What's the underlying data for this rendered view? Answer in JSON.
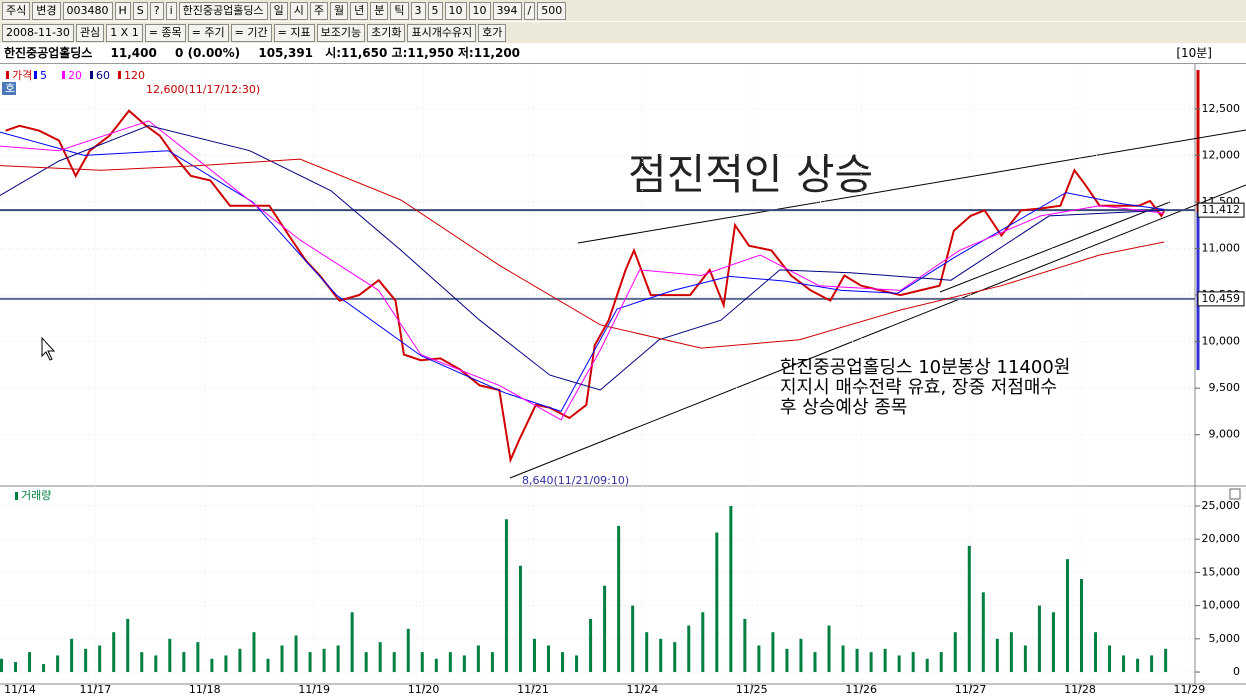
{
  "toolbar": {
    "row1": [
      "주식",
      "변경",
      "003480",
      "H",
      "S",
      "?",
      "i",
      "한진중공업홀딩스",
      "일",
      "시",
      "주",
      "월",
      "년",
      "분",
      "틱",
      "3",
      "5",
      "10",
      "10",
      "394",
      "/",
      "500"
    ],
    "row2": [
      "2008-11-30",
      "관심",
      "1 X 1",
      "= 종목",
      "= 주기",
      "= 기간",
      "= 지표",
      "보조기능",
      "초기화",
      "표시개수유지",
      "호가"
    ]
  },
  "info_bar": {
    "name": "한진중공업홀딩스",
    "price": "11,400",
    "change": "0",
    "change_pct": "(0.00%)",
    "volume": "105,391",
    "open": "시:11,650",
    "high": "고:11,950",
    "low": "저:11,200",
    "period": "[10분]"
  },
  "annotations": {
    "high": "12,600(11/17/12:30)",
    "low": "8,640(11/21/09:10)",
    "handwriting": "점진적인 상승",
    "comment": [
      "한진중공업홀딩스 10분봉상 11400원",
      "지지시 매수전략 유효, 장중 저점매수",
      "후 상승예상 종목"
    ],
    "badge": "호"
  },
  "chart_data": [
    {
      "type": "line",
      "xlim": [
        0,
        426
      ],
      "ylim": [
        8460,
        12960
      ],
      "xticks": [
        {
          "value": -5,
          "label": "11/14"
        },
        {
          "value": 34,
          "label": "11/17"
        },
        {
          "value": 73,
          "label": "11/18"
        },
        {
          "value": 112,
          "label": "11/19"
        },
        {
          "value": 151,
          "label": "11/20"
        },
        {
          "value": 190,
          "label": "11/21"
        },
        {
          "value": 229,
          "label": "11/24"
        },
        {
          "value": 268,
          "label": "11/25"
        },
        {
          "value": 307,
          "label": "11/26"
        },
        {
          "value": 346,
          "label": "11/27"
        },
        {
          "value": 385,
          "label": "11/28"
        },
        {
          "value": 424,
          "label": "11/29"
        }
      ],
      "yticks": [
        {
          "value": 9000,
          "label": "9,000"
        },
        {
          "value": 9500,
          "label": "9,500"
        },
        {
          "value": 10000,
          "label": "10,000"
        },
        {
          "value": 10500,
          "label": "10,500"
        },
        {
          "value": 11000,
          "label": "11,000"
        },
        {
          "value": 11500,
          "label": "11,500"
        },
        {
          "value": 12000,
          "label": "12,000"
        },
        {
          "value": 12500,
          "label": "12,500"
        }
      ],
      "levels": [
        {
          "value": 11412,
          "label": "11,412",
          "color": "#3a4a78"
        },
        {
          "value": 10459,
          "label": "10,459",
          "color": "#5a6a90"
        }
      ],
      "series": [
        {
          "name": "가격",
          "color": "#d00000",
          "x": [
            2,
            7,
            14,
            21,
            27,
            32,
            39,
            46,
            52,
            57,
            62,
            68,
            75,
            82,
            89,
            96,
            103,
            109,
            114,
            121,
            128,
            135,
            141,
            144,
            150,
            157,
            164,
            171,
            178,
            182,
            185,
            191,
            196,
            203,
            209,
            212,
            217,
            223,
            226,
            232,
            239,
            246,
            253,
            258,
            262,
            267,
            275,
            282,
            289,
            296,
            301,
            307,
            314,
            321,
            328,
            335,
            340,
            346,
            351,
            357,
            364,
            371,
            378,
            383,
            387,
            392,
            399,
            406,
            410,
            414,
            415
          ],
          "values": [
            12265,
            12318,
            12265,
            12160,
            11780,
            12050,
            12210,
            12480,
            12320,
            12210,
            12000,
            11780,
            11730,
            11460,
            11460,
            11460,
            11140,
            10870,
            10710,
            10440,
            10500,
            10660,
            10440,
            9860,
            9800,
            9820,
            9700,
            9530,
            9480,
            8730,
            8940,
            9320,
            9290,
            9180,
            9320,
            9960,
            10230,
            10770,
            10980,
            10500,
            10500,
            10500,
            10770,
            10390,
            11250,
            11030,
            10980,
            10710,
            10550,
            10440,
            10710,
            10600,
            10550,
            10500,
            10550,
            10600,
            11190,
            11350,
            11410,
            11140,
            11410,
            11430,
            11460,
            11840,
            11680,
            11460,
            11460,
            11460,
            11510,
            11350,
            11400
          ]
        },
        {
          "name": "5",
          "color": "#0000ff",
          "x": [
            0,
            30,
            60,
            90,
            120,
            150,
            180,
            200,
            220,
            240,
            260,
            280,
            300,
            320,
            340,
            360,
            380,
            400,
            415
          ],
          "values": [
            12250,
            12000,
            12050,
            11500,
            10500,
            9850,
            9450,
            9250,
            10350,
            10550,
            10700,
            10650,
            10550,
            10520,
            10900,
            11250,
            11600,
            11480,
            11420
          ]
        },
        {
          "name": "20",
          "color": "#ff00ff",
          "x": [
            0,
            21,
            53,
            82,
            107,
            135,
            150,
            178,
            200,
            214,
            228,
            250,
            271,
            292,
            321,
            342,
            371,
            392,
            415
          ],
          "values": [
            12100,
            12050,
            12370,
            11680,
            11090,
            10550,
            9860,
            9530,
            9160,
            9910,
            10770,
            10710,
            10930,
            10600,
            10550,
            10980,
            11350,
            11460,
            11380
          ]
        },
        {
          "name": "60",
          "color": "#000080",
          "x": [
            0,
            21,
            53,
            89,
            118,
            143,
            171,
            196,
            214,
            235,
            257,
            278,
            303,
            339,
            374,
            415
          ],
          "values": [
            11570,
            11940,
            12320,
            12050,
            11620,
            10980,
            10230,
            9640,
            9480,
            10020,
            10230,
            10770,
            10740,
            10660,
            11350,
            11410
          ]
        },
        {
          "name": "120",
          "color": "#d00000",
          "x": [
            0,
            36,
            71,
            107,
            143,
            178,
            214,
            250,
            285,
            321,
            357,
            392,
            415
          ],
          "values": [
            11890,
            11840,
            11890,
            11960,
            11520,
            10820,
            10180,
            9930,
            10020,
            10340,
            10600,
            10930,
            11070
          ]
        }
      ]
    },
    {
      "type": "bar",
      "title": "거래량",
      "color": "#008040",
      "xlim": [
        0,
        426
      ],
      "ylim": [
        -1650,
        27860
      ],
      "yticks": [
        0,
        {
          "value": 5000,
          "label": "5,000"
        },
        {
          "value": 10000,
          "label": "10,000"
        },
        {
          "value": 15000,
          "label": "15,000"
        },
        {
          "value": 20000,
          "label": "20,000"
        },
        {
          "value": 25000,
          "label": "25,000"
        }
      ],
      "x": [
        0,
        5,
        10,
        15,
        20,
        25,
        30,
        35,
        40,
        45,
        50,
        55,
        60,
        65,
        70,
        75,
        80,
        85,
        90,
        95,
        100,
        105,
        110,
        115,
        120,
        125,
        130,
        135,
        140,
        145,
        150,
        155,
        160,
        165,
        170,
        175,
        180,
        185,
        190,
        195,
        200,
        205,
        210,
        215,
        220,
        225,
        230,
        235,
        240,
        245,
        250,
        255,
        260,
        265,
        270,
        275,
        280,
        285,
        290,
        295,
        300,
        305,
        310,
        315,
        320,
        325,
        330,
        335,
        340,
        345,
        350,
        355,
        360,
        365,
        370,
        375,
        380,
        385,
        390,
        395,
        400,
        405,
        410,
        415
      ],
      "values": [
        2000,
        1500,
        3000,
        1200,
        2500,
        5000,
        3500,
        4000,
        6000,
        8000,
        3000,
        2500,
        5000,
        3000,
        4500,
        2000,
        2500,
        3500,
        6000,
        2000,
        4000,
        5500,
        3000,
        3500,
        4000,
        9000,
        3000,
        4500,
        3000,
        6500,
        3000,
        2000,
        3000,
        2500,
        4000,
        3000,
        23000,
        16000,
        5000,
        4000,
        3000,
        2500,
        8000,
        13000,
        22000,
        10000,
        6000,
        5000,
        4500,
        7000,
        9000,
        21000,
        25000,
        8000,
        4000,
        6000,
        3500,
        5000,
        3000,
        7000,
        4000,
        3500,
        3000,
        3500,
        2500,
        3000,
        2000,
        3000,
        6000,
        19000,
        12000,
        5000,
        6000,
        4000,
        10000,
        9000,
        17000,
        14000,
        6000,
        4000,
        2500,
        2000,
        2500,
        3500
      ]
    }
  ]
}
